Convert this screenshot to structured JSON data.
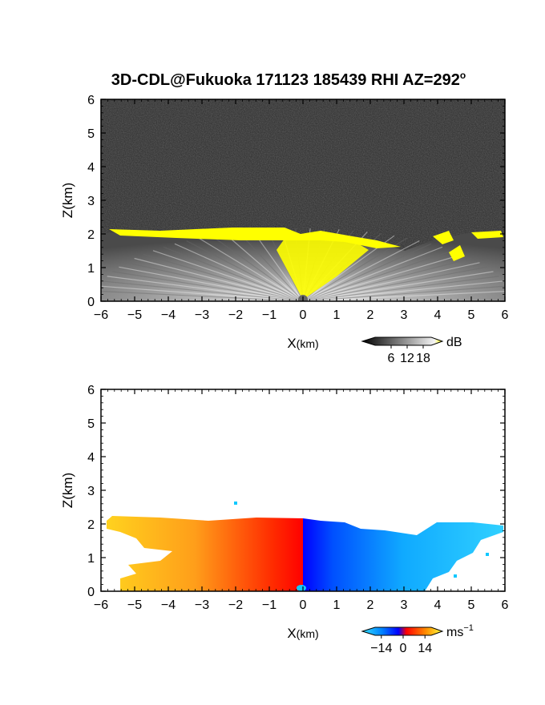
{
  "title": "3D-CDL@Fukuoka 171123 185439 RHI AZ=292",
  "title_superscript": "o",
  "colors": {
    "axis": "#000000",
    "highlight_yellow": "#ffff00",
    "noise_background": "#2b2b2b",
    "velocity_near_blue": "#0000ff",
    "velocity_light_blue": "#10c8ff",
    "velocity_red": "#ff1e00",
    "velocity_orange": "#ffb000"
  },
  "chart_data": [
    {
      "type": "heatmap",
      "panel": "top",
      "quantity": "backscatter",
      "xlabel_main": "X",
      "xlabel_unit": "(km)",
      "ylabel": "Z(km)",
      "xlim": [
        -6,
        6
      ],
      "ylim": [
        0,
        6
      ],
      "xticks": [
        "−6",
        "−5",
        "−4",
        "−3",
        "−2",
        "−1",
        "0",
        "1",
        "2",
        "3",
        "4",
        "5",
        "6"
      ],
      "yticks": [
        "0",
        "1",
        "2",
        "3",
        "4",
        "5",
        "6"
      ],
      "colorbar": {
        "unit": "dB",
        "unit_superscript": "",
        "ticks": [
          "6",
          "12",
          "18"
        ],
        "tick_values": [
          6,
          12,
          18
        ],
        "range": [
          0,
          21
        ],
        "colors": [
          "#000000",
          "#555555",
          "#a0a0a0",
          "#eeeeee",
          "#ffff00"
        ]
      },
      "echo_top_km": [
        {
          "x": -5.8,
          "z": 2.2
        },
        {
          "x": -4.0,
          "z": 2.05
        },
        {
          "x": -2.0,
          "z": 2.2
        },
        {
          "x": -0.5,
          "z": 2.1
        },
        {
          "x": 0.0,
          "z": 1.9
        },
        {
          "x": 0.8,
          "z": 2.0
        },
        {
          "x": 2.0,
          "z": 1.8
        },
        {
          "x": 3.0,
          "z": 1.55
        },
        {
          "x": 4.0,
          "z": 1.9
        },
        {
          "x": 5.0,
          "z": 2.05
        },
        {
          "x": 6.0,
          "z": 2.0
        }
      ],
      "strong_echo_region": "yellow returns near Z 2 km along the echo top and in a cone above the lidar between X -1 and 2 km"
    },
    {
      "type": "heatmap",
      "panel": "bottom",
      "quantity": "doppler_velocity",
      "xlabel_main": "X",
      "xlabel_unit": "(km)",
      "ylabel": "Z(km)",
      "xlim": [
        -6,
        6
      ],
      "ylim": [
        0,
        6
      ],
      "xticks": [
        "−6",
        "−5",
        "−4",
        "−3",
        "−2",
        "−1",
        "0",
        "1",
        "2",
        "3",
        "4",
        "5",
        "6"
      ],
      "yticks": [
        "0",
        "1",
        "2",
        "3",
        "4",
        "5",
        "6"
      ],
      "colorbar": {
        "unit": "ms",
        "unit_superscript": "−1",
        "ticks": [
          "−14",
          "0",
          "14"
        ],
        "tick_values": [
          -14,
          0,
          14
        ],
        "range": [
          -18,
          18
        ],
        "colors": [
          "#33e0ff",
          "#0080ff",
          "#0000ff",
          "#ff0000",
          "#ff8000",
          "#ffff40"
        ]
      },
      "velocity_pattern": [
        {
          "x": -5.5,
          "v": 13
        },
        {
          "x": -3.0,
          "v": 10
        },
        {
          "x": -1.5,
          "v": 6
        },
        {
          "x": -0.3,
          "v": 2
        },
        {
          "x": 0.3,
          "v": -2
        },
        {
          "x": 1.0,
          "v": -6
        },
        {
          "x": 3.0,
          "v": -11
        },
        {
          "x": 5.5,
          "v": -13
        }
      ]
    }
  ]
}
